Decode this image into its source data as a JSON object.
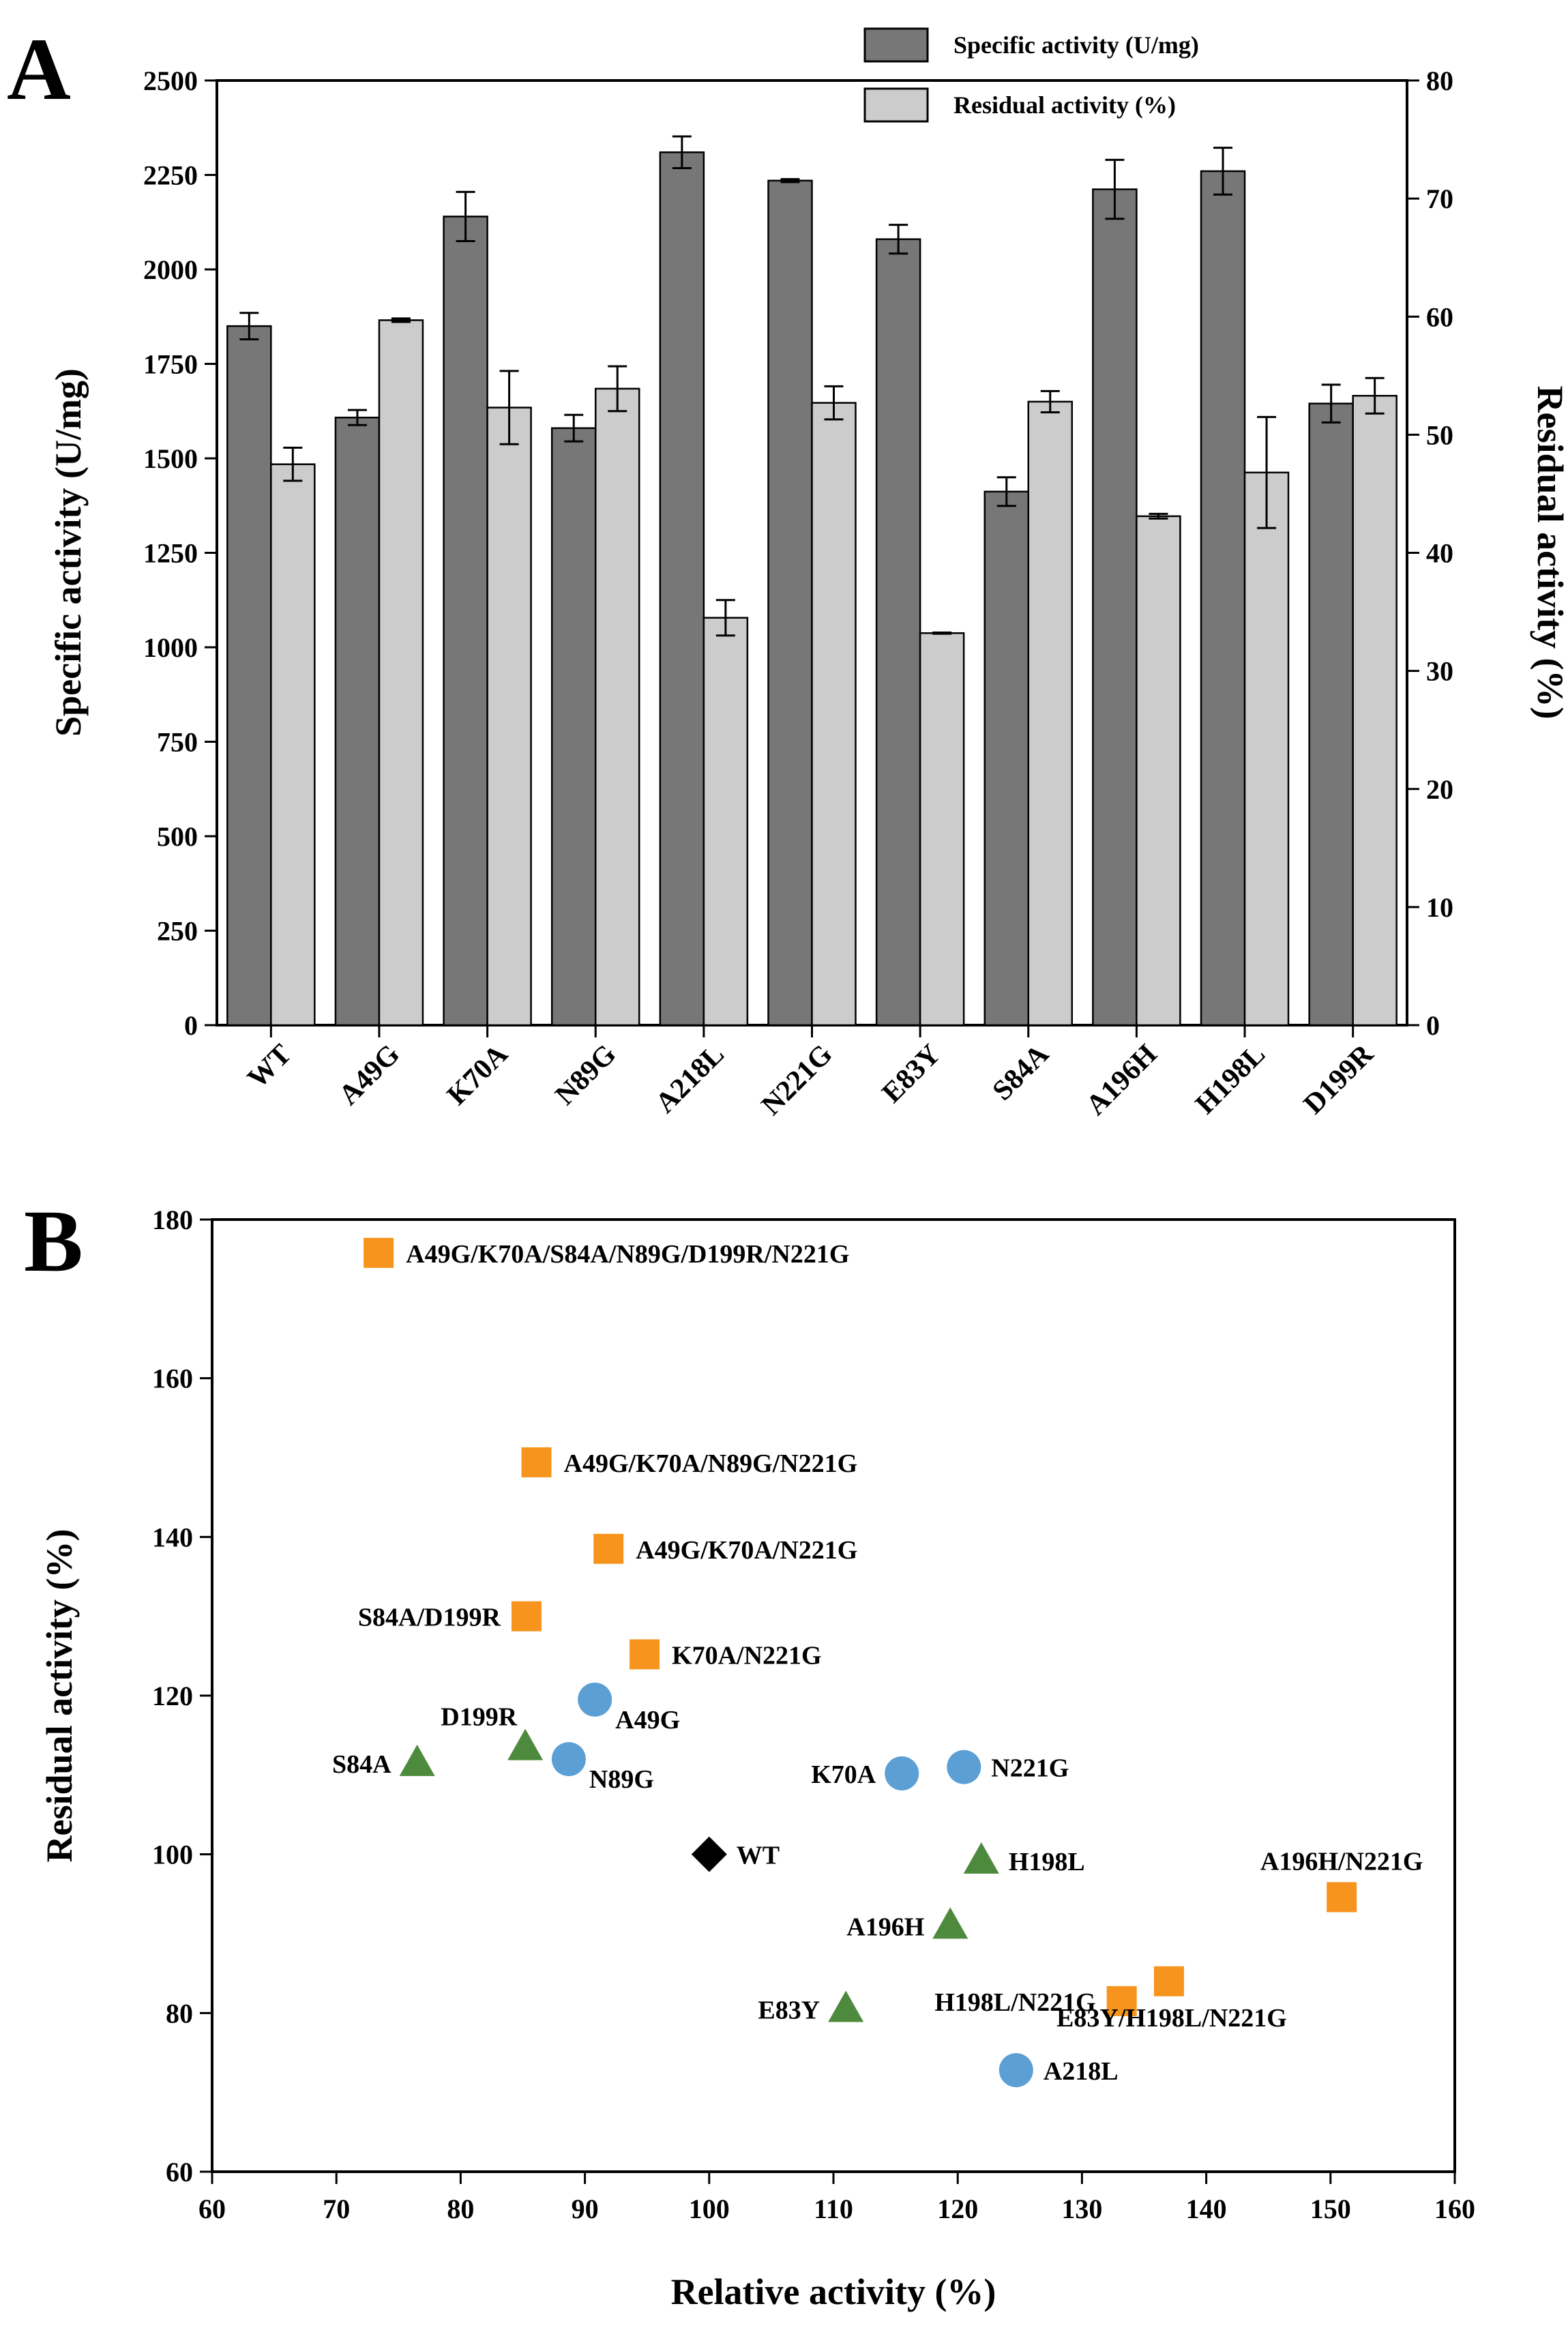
{
  "chart_data": [
    {
      "panel": "A",
      "type": "bar",
      "categories": [
        "WT",
        "A49G",
        "K70A",
        "N89G",
        "A218L",
        "N221G",
        "E83Y",
        "S84A",
        "A196H",
        "H198L",
        "D199R"
      ],
      "series": [
        {
          "name": "Specific activity (U/mg)",
          "axis": "left",
          "color": "#777777",
          "values": [
            1850,
            1608,
            2140,
            1580,
            2310,
            2235,
            2080,
            1412,
            2212,
            2260,
            1645
          ],
          "errors": [
            35,
            20,
            65,
            35,
            42,
            4,
            38,
            38,
            78,
            62,
            50
          ]
        },
        {
          "name": "Residual activity (%)",
          "axis": "right",
          "color": "#cccccc",
          "values": [
            47.5,
            59.7,
            52.3,
            53.9,
            34.5,
            52.7,
            33.2,
            52.8,
            43.1,
            46.8,
            53.3
          ],
          "errors": [
            1.4,
            0.15,
            3.1,
            1.9,
            1.5,
            1.4,
            0.05,
            0.9,
            0.2,
            4.7,
            1.5
          ]
        }
      ],
      "ylabel": "Specific activity (U/mg)",
      "ylim": [
        0,
        2500
      ],
      "yticks": [
        0,
        250,
        500,
        750,
        1000,
        1250,
        1500,
        1750,
        2000,
        2250,
        2500
      ],
      "y2label": "Residual activity (%)",
      "y2lim": [
        0,
        80
      ],
      "y2ticks": [
        0,
        10,
        20,
        30,
        40,
        50,
        60,
        70,
        80
      ],
      "legend_position": "top-right"
    },
    {
      "panel": "B",
      "type": "scatter",
      "xlabel": "Relative activity (%)",
      "ylabel": "Residual activity (%)",
      "xlim": [
        60,
        160
      ],
      "ylim": [
        60,
        180
      ],
      "xticks": [
        60,
        70,
        80,
        90,
        100,
        110,
        120,
        130,
        140,
        150,
        160
      ],
      "yticks": [
        60,
        80,
        100,
        120,
        140,
        160,
        180
      ],
      "points": [
        {
          "label": "WT",
          "x": 100,
          "y": 100,
          "group": "wt",
          "label_side": "right"
        },
        {
          "label": "A49G",
          "x": 90.8,
          "y": 119.5,
          "group": "single-blue",
          "label_side": "right-down"
        },
        {
          "label": "N89G",
          "x": 88.7,
          "y": 112,
          "group": "single-blue",
          "label_side": "right-down"
        },
        {
          "label": "K70A",
          "x": 115.5,
          "y": 110.2,
          "group": "single-blue",
          "label_side": "left"
        },
        {
          "label": "N221G",
          "x": 120.5,
          "y": 111,
          "group": "single-blue",
          "label_side": "right"
        },
        {
          "label": "A218L",
          "x": 124.7,
          "y": 72.8,
          "group": "single-blue",
          "label_side": "right"
        },
        {
          "label": "S84A",
          "x": 76.5,
          "y": 111.5,
          "group": "single-green",
          "label_side": "left"
        },
        {
          "label": "D199R",
          "x": 85.2,
          "y": 113.5,
          "group": "single-green",
          "label_side": "left-up"
        },
        {
          "label": "H198L",
          "x": 121.9,
          "y": 99.2,
          "group": "single-green",
          "label_side": "right"
        },
        {
          "label": "A196H",
          "x": 119.4,
          "y": 91,
          "group": "single-green",
          "label_side": "left"
        },
        {
          "label": "E83Y",
          "x": 111,
          "y": 80.5,
          "group": "single-green",
          "label_side": "left"
        },
        {
          "label": "A49G/K70A/S84A/N89G/D199R/N221G",
          "x": 73.4,
          "y": 175.8,
          "group": "combo-orange",
          "label_side": "right"
        },
        {
          "label": "A49G/K70A/N89G/N221G",
          "x": 86.1,
          "y": 149.4,
          "group": "combo-orange",
          "label_side": "right"
        },
        {
          "label": "A49G/K70A/N221G",
          "x": 91.9,
          "y": 138.5,
          "group": "combo-orange",
          "label_side": "right"
        },
        {
          "label": "S84A/D199R",
          "x": 85.3,
          "y": 130,
          "group": "combo-orange",
          "label_side": "left"
        },
        {
          "label": "K70A/N221G",
          "x": 94.8,
          "y": 125.2,
          "group": "combo-orange",
          "label_side": "right"
        },
        {
          "label": "A196H/N221G",
          "x": 150.9,
          "y": 94.6,
          "group": "combo-orange",
          "label_side": "above"
        },
        {
          "label": "H198L/N221G",
          "x": 133.2,
          "y": 81.5,
          "group": "combo-orange",
          "label_side": "left"
        },
        {
          "label": "E83Y/H198L/N221G",
          "x": 137,
          "y": 84,
          "group": "combo-orange",
          "label_side": "below"
        }
      ],
      "group_styles": {
        "wt": {
          "shape": "diamond",
          "color": "#000000"
        },
        "single-blue": {
          "shape": "circle",
          "color": "#5b9fd5"
        },
        "single-green": {
          "shape": "triangle",
          "color": "#4e8a3e"
        },
        "combo-orange": {
          "shape": "square",
          "color": "#f7941d"
        }
      }
    }
  ],
  "panels": {
    "a": {
      "letter": "A"
    },
    "b": {
      "letter": "B"
    }
  }
}
